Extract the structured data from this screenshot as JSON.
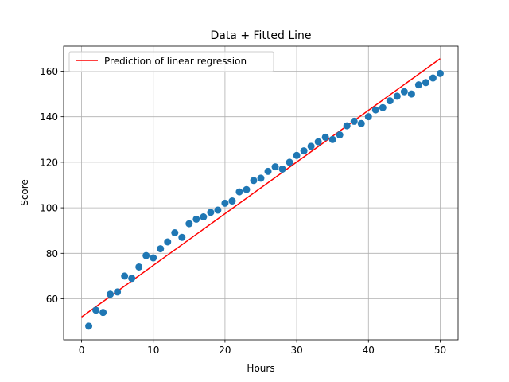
{
  "chart_data": {
    "type": "scatter",
    "title": "Data + Fitted Line",
    "xlabel": "Hours",
    "ylabel": "Score",
    "xlim": [
      -2.5,
      52.5
    ],
    "ylim": [
      42,
      171
    ],
    "xticks": [
      0,
      10,
      20,
      30,
      40,
      50
    ],
    "yticks": [
      60,
      80,
      100,
      120,
      140,
      160
    ],
    "grid": true,
    "legend_position": "top-left",
    "series": [
      {
        "type": "scatter",
        "color": "#1f77b4",
        "x": [
          1,
          2,
          3,
          4,
          5,
          6,
          7,
          8,
          9,
          10,
          11,
          12,
          13,
          14,
          15,
          16,
          17,
          18,
          19,
          20,
          21,
          22,
          23,
          24,
          25,
          26,
          27,
          28,
          29,
          30,
          31,
          32,
          33,
          34,
          35,
          36,
          37,
          38,
          39,
          40,
          41,
          42,
          43,
          44,
          45,
          46,
          47,
          48,
          49,
          50
        ],
        "y": [
          48,
          55,
          54,
          62,
          63,
          70,
          69,
          74,
          79,
          78,
          82,
          85,
          89,
          87,
          93,
          95,
          96,
          98,
          99,
          102,
          103,
          107,
          108,
          112,
          113,
          116,
          118,
          117,
          120,
          123,
          125,
          127,
          129,
          131,
          130,
          132,
          136,
          138,
          137,
          140,
          143,
          144,
          147,
          149,
          151,
          150,
          154,
          155,
          157,
          159
        ]
      },
      {
        "type": "line",
        "name": "Prediction of linear regression",
        "color": "#ff0000",
        "x": [
          0,
          50
        ],
        "y": [
          52,
          165.5
        ]
      }
    ]
  }
}
